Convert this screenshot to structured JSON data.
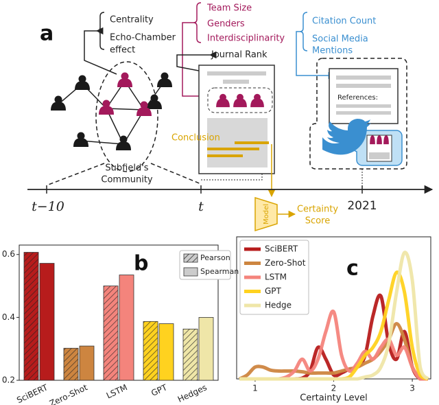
{
  "diagram": {
    "panel_label": "a",
    "centrality": "Centrality",
    "echo_chamber": [
      "Echo-Chamber",
      "effect"
    ],
    "team_size": "Team Size",
    "genders": "Genders",
    "interdisciplinarity": "Interdisciplinarity",
    "journal_rank": "Journal Rank",
    "citation_count": "Citation Count",
    "social_media": [
      "Social Media",
      "Mentions"
    ],
    "references": "References:",
    "conclusion": "Conclusion",
    "community": [
      "Subfield's",
      "Community"
    ],
    "timeline": [
      "t−10",
      "t",
      "2021"
    ],
    "model": "Model",
    "certainty_score": [
      "Certainty",
      "Score"
    ]
  },
  "chart_data": [
    {
      "type": "bar",
      "panel_label": "b",
      "categories": [
        "SciBERT",
        "Zero-Shot",
        "LSTM",
        "GPT",
        "Hedges"
      ],
      "category_colors": [
        "#b71c1c",
        "#cd8540",
        "#f4847c",
        "#ffd21f",
        "#efe6a8"
      ],
      "series": [
        {
          "name": "Pearson",
          "hatch": true,
          "values": [
            0.607,
            0.302,
            0.5,
            0.387,
            0.363
          ]
        },
        {
          "name": "Spearman",
          "hatch": false,
          "values": [
            0.572,
            0.309,
            0.535,
            0.38,
            0.4
          ]
        }
      ],
      "ylim": [
        0.2,
        0.63
      ],
      "yticks": [
        0.2,
        0.4,
        0.6
      ],
      "legend": "upper right"
    },
    {
      "type": "line",
      "panel_label": "c",
      "x_label": "Certainty Level",
      "x": [
        0.8,
        0.9,
        1.0,
        1.1,
        1.2,
        1.3,
        1.4,
        1.5,
        1.6,
        1.7,
        1.8,
        1.9,
        2.0,
        2.1,
        2.2,
        2.3,
        2.4,
        2.5,
        2.6,
        2.7,
        2.8,
        2.9,
        3.0,
        3.1,
        3.2
      ],
      "series": [
        {
          "name": "SciBERT",
          "color": "#b71c1c",
          "values": [
            0,
            0,
            0,
            0,
            0,
            0,
            0,
            0,
            0.02,
            0.2,
            0.8,
            0.5,
            0.1,
            0.15,
            0.25,
            0.3,
            0.6,
            1.6,
            2.1,
            0.9,
            0.5,
            1.2,
            0.3,
            0,
            0
          ]
        },
        {
          "name": "Zero-Shot",
          "color": "#cd8540",
          "values": [
            0,
            0.1,
            0.3,
            0.3,
            0.22,
            0.2,
            0.2,
            0.2,
            0.18,
            0.15,
            0.15,
            0.15,
            0.15,
            0.2,
            0.25,
            0.3,
            0.4,
            0.5,
            0.7,
            1.0,
            1.4,
            1.0,
            0.3,
            0.05,
            0
          ]
        },
        {
          "name": "LSTM",
          "color": "#f4847c",
          "values": [
            0,
            0,
            0,
            0,
            0,
            0,
            0.05,
            0.2,
            0.5,
            0.2,
            0.5,
            1.2,
            1.7,
            0.6,
            0.2,
            0.4,
            0.7,
            0.5,
            0.8,
            1.0,
            0.6,
            0.8,
            0.3,
            0,
            0
          ]
        },
        {
          "name": "GPT",
          "color": "#ffd21f",
          "values": [
            0,
            0,
            0,
            0,
            0,
            0,
            0,
            0,
            0,
            0,
            0,
            0,
            0,
            0,
            0.05,
            0.3,
            0.6,
            0.8,
            1.2,
            2.0,
            2.7,
            2.2,
            0.8,
            0.1,
            0
          ]
        },
        {
          "name": "Hedge",
          "color": "#efe6a8",
          "values": [
            0,
            0,
            0,
            0,
            0,
            0,
            0,
            0,
            0,
            0,
            0,
            0,
            0,
            0,
            0,
            0,
            0.05,
            0.1,
            0.3,
            0.9,
            2.2,
            3.2,
            2.5,
            0.3,
            0
          ]
        }
      ],
      "xlim": [
        0.765,
        3.235
      ],
      "xticks": [
        1,
        2,
        3
      ],
      "ylim": [
        0,
        3.6
      ],
      "legend": "upper left"
    }
  ]
}
